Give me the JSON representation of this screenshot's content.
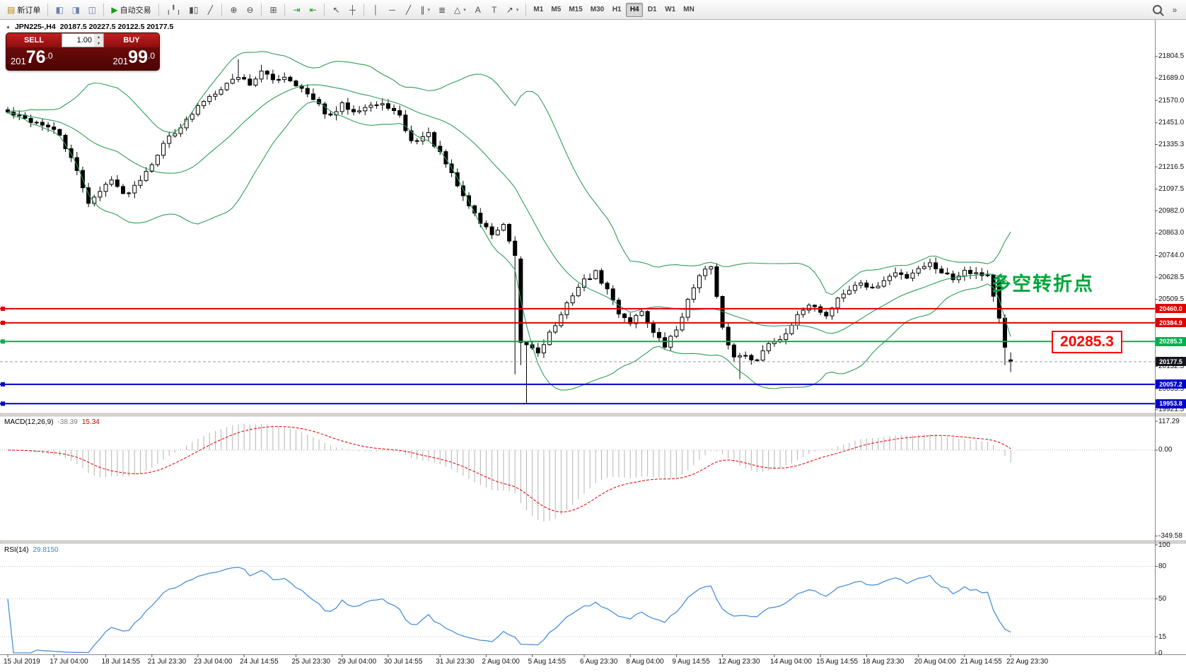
{
  "toolbar": {
    "caret_glyph": "▾",
    "groups": [
      {
        "buttons": [
          {
            "name": "new-order-button",
            "glyph": "▤",
            "glyph_color": "#b8860b",
            "label": "新订单"
          }
        ]
      },
      {
        "buttons": [
          {
            "name": "market-watch-icon",
            "glyph": "◧",
            "glyph_color": "#6b7fae"
          },
          {
            "name": "data-window-icon",
            "glyph": "◨",
            "glyph_color": "#6b7fae"
          },
          {
            "name": "navigator-icon",
            "glyph": "◫",
            "glyph_color": "#6b7fae"
          }
        ]
      },
      {
        "buttons": [
          {
            "name": "autotrading-button",
            "glyph": "▶",
            "glyph_color": "#18a018",
            "label": "自动交易"
          }
        ]
      },
      {
        "buttons": [
          {
            "name": "bar-chart-icon",
            "glyph": "╷╹╷"
          },
          {
            "name": "candlestick-chart-icon",
            "glyph": "▮▯"
          },
          {
            "name": "line-chart-icon",
            "glyph": "╱"
          }
        ]
      },
      {
        "buttons": [
          {
            "name": "zoom-in-icon",
            "glyph": "⊕"
          },
          {
            "name": "zoom-out-icon",
            "glyph": "⊖"
          }
        ]
      },
      {
        "buttons": [
          {
            "name": "tile-windows-icon",
            "glyph": "⊞"
          }
        ]
      },
      {
        "buttons": [
          {
            "name": "auto-scroll-icon",
            "glyph": "⇥",
            "glyph_color": "#18a018"
          },
          {
            "name": "chart-shift-icon",
            "glyph": "⇤",
            "glyph_color": "#18a018"
          }
        ]
      },
      {
        "buttons": [
          {
            "name": "cursor-icon",
            "glyph": "↖"
          },
          {
            "name": "crosshair-icon",
            "glyph": "┼"
          }
        ]
      },
      {
        "buttons": [
          {
            "name": "vertical-line-icon",
            "glyph": "│"
          },
          {
            "name": "horizontal-line-icon",
            "glyph": "─"
          },
          {
            "name": "trendline-icon",
            "glyph": "╱"
          },
          {
            "name": "channel-icon",
            "glyph": "∥",
            "caret": true
          },
          {
            "name": "fibonacci-icon",
            "glyph": "≣"
          },
          {
            "name": "shapes-icon",
            "glyph": "△",
            "caret": true
          },
          {
            "name": "text-icon",
            "glyph": "A"
          },
          {
            "name": "text-label-icon",
            "glyph": "T"
          },
          {
            "name": "arrows-icon",
            "glyph": "↗",
            "caret": true
          }
        ]
      }
    ],
    "timeframes": [
      "M1",
      "M5",
      "M15",
      "M30",
      "H1",
      "H4",
      "D1",
      "W1",
      "MN"
    ],
    "active_timeframe": "H4",
    "right_icons": [
      {
        "name": "search-icon",
        "magnifier": true
      },
      {
        "name": "more-tools-icon",
        "glyph": "»"
      }
    ]
  },
  "title": {
    "marker": "▲",
    "symbol": "JPN225-,H4",
    "ohlc_text": "20187.5 20227.5 20122.5 20177.5"
  },
  "one_click": {
    "sell_label": "SELL",
    "buy_label": "BUY",
    "volume": "1.00",
    "spin_up": "▲",
    "spin_down": "▼",
    "sell_price": {
      "pre": "201",
      "big": "76",
      "frac": ".0"
    },
    "buy_price": {
      "pre": "201",
      "big": "99",
      "frac": ".0"
    }
  },
  "annotation": {
    "text": "多空转折点",
    "color": "#00a63c"
  },
  "callout": {
    "text": "20285.3",
    "color": "#ff0000"
  },
  "chart_data": {
    "type": "candlestick",
    "symbol": "JPN225-",
    "period": "H4",
    "ohlc": {
      "open": 20187.5,
      "high": 20227.5,
      "low": 20122.5,
      "close": 20177.5
    },
    "price_range": {
      "top": 22000,
      "bottom": 19906
    },
    "n_candles": 175,
    "first_open": 21520,
    "noise": 14,
    "seed": 42,
    "waypoints": [
      [
        0,
        21505
      ],
      [
        3,
        21470
      ],
      [
        6,
        21445
      ],
      [
        9,
        21385
      ],
      [
        12,
        21190
      ],
      [
        14,
        21030
      ],
      [
        16,
        21080
      ],
      [
        18,
        21160
      ],
      [
        20,
        21065
      ],
      [
        22,
        21115
      ],
      [
        25,
        21240
      ],
      [
        28,
        21380
      ],
      [
        31,
        21460
      ],
      [
        34,
        21570
      ],
      [
        37,
        21640
      ],
      [
        40,
        21700
      ],
      [
        42,
        21660
      ],
      [
        44,
        21720
      ],
      [
        46,
        21680
      ],
      [
        48,
        21700
      ],
      [
        50,
        21660
      ],
      [
        53,
        21570
      ],
      [
        56,
        21480
      ],
      [
        58,
        21545
      ],
      [
        60,
        21520
      ],
      [
        63,
        21545
      ],
      [
        66,
        21540
      ],
      [
        68,
        21480
      ],
      [
        70,
        21350
      ],
      [
        73,
        21390
      ],
      [
        76,
        21230
      ],
      [
        79,
        21060
      ],
      [
        82,
        20920
      ],
      [
        84,
        20860
      ],
      [
        86,
        20900
      ],
      [
        88,
        20730
      ],
      [
        90,
        20270
      ],
      [
        92,
        20230
      ],
      [
        94,
        20330
      ],
      [
        96,
        20420
      ],
      [
        98,
        20540
      ],
      [
        100,
        20610
      ],
      [
        102,
        20650
      ],
      [
        104,
        20560
      ],
      [
        106,
        20440
      ],
      [
        108,
        20390
      ],
      [
        110,
        20450
      ],
      [
        112,
        20330
      ],
      [
        114,
        20260
      ],
      [
        116,
        20350
      ],
      [
        118,
        20500
      ],
      [
        120,
        20650
      ],
      [
        122,
        20680
      ],
      [
        124,
        20350
      ],
      [
        126,
        20200
      ],
      [
        128,
        20220
      ],
      [
        130,
        20180
      ],
      [
        132,
        20280
      ],
      [
        134,
        20300
      ],
      [
        136,
        20380
      ],
      [
        138,
        20450
      ],
      [
        140,
        20480
      ],
      [
        142,
        20420
      ],
      [
        144,
        20520
      ],
      [
        146,
        20560
      ],
      [
        148,
        20600
      ],
      [
        150,
        20560
      ],
      [
        152,
        20610
      ],
      [
        154,
        20650
      ],
      [
        156,
        20630
      ],
      [
        158,
        20680
      ],
      [
        160,
        20700
      ],
      [
        162,
        20660
      ],
      [
        164,
        20620
      ],
      [
        166,
        20670
      ],
      [
        168,
        20650
      ],
      [
        170,
        20640
      ],
      [
        172,
        20420
      ],
      [
        173,
        20250
      ],
      [
        174,
        20177.5
      ]
    ],
    "high_overrides": {
      "40": 21790,
      "44": 21760
    },
    "low_overrides": {
      "88": 20110,
      "90": 19955,
      "127": 20085
    },
    "force_candles": {
      "89": [
        20725,
        20740,
        20160,
        20280
      ],
      "172": [
        20610,
        20630,
        20380,
        20410
      ],
      "173": [
        20410,
        20430,
        20160,
        20255
      ],
      "174": [
        20187.5,
        20227.5,
        20122.5,
        20177.5
      ]
    },
    "bollinger": {
      "period": 20,
      "deviation": 2
    },
    "colors": {
      "bull": "#ffffff",
      "bear": "#000000",
      "bb": "#2f9e5a",
      "macd_hist": "#b4b4b4",
      "macd_signal": "#e00000",
      "rsi_line": "#4a90d9"
    },
    "horizontal_lines": [
      {
        "price": 20460.0,
        "label": "20460.0",
        "color": "#e00000"
      },
      {
        "price": 20384.9,
        "label": "20384.9",
        "color": "#e00000"
      },
      {
        "price": 20285.3,
        "label": "20285.3",
        "color": "#00b050"
      },
      {
        "price": 20057.2,
        "label": "20057.2",
        "color": "#0000cc"
      },
      {
        "price": 19953.8,
        "label": "19953.8",
        "color": "#0000cc"
      }
    ],
    "current_price": {
      "price": 20177.5,
      "label": "20177.5",
      "badge_color": "#15151d"
    },
    "y_ticks": [
      "21804.5",
      "21689.0",
      "21570.0",
      "21451.0",
      "21335.3",
      "21216.5",
      "21097.5",
      "20982.0",
      "20863.0",
      "20744.0",
      "20628.5",
      "20509.5",
      "20390.5",
      "20271.5",
      "20152.5",
      "20033.5",
      "19921.5"
    ],
    "x_ticks": [
      {
        "label": "15 Jul 2019",
        "i": 0
      },
      {
        "label": "17 Jul 04:00",
        "i": 8
      },
      {
        "label": "18 Jul 14:55",
        "i": 17
      },
      {
        "label": "21 Jul 23:30",
        "i": 25
      },
      {
        "label": "23 Jul 04:00",
        "i": 33
      },
      {
        "label": "24 Jul 14:55",
        "i": 41
      },
      {
        "label": "25 Jul 23:30",
        "i": 50
      },
      {
        "label": "29 Jul 04:00",
        "i": 58
      },
      {
        "label": "30 Jul 14:55",
        "i": 66
      },
      {
        "label": "31 Jul 23:30",
        "i": 75
      },
      {
        "label": "2 Aug 04:00",
        "i": 83
      },
      {
        "label": "5 Aug 14:55",
        "i": 91
      },
      {
        "label": "6 Aug 23:30",
        "i": 100
      },
      {
        "label": "8 Aug 04:00",
        "i": 108
      },
      {
        "label": "9 Aug 14:55",
        "i": 116
      },
      {
        "label": "12 Aug 23:30",
        "i": 124
      },
      {
        "label": "14 Aug 04:00",
        "i": 133
      },
      {
        "label": "15 Aug 14:55",
        "i": 141
      },
      {
        "label": "18 Aug 23:30",
        "i": 149
      },
      {
        "label": "20 Aug 04:00",
        "i": 158
      },
      {
        "label": "21 Aug 14:55",
        "i": 166
      },
      {
        "label": "22 Aug 23:30",
        "i": 174
      }
    ],
    "macd": {
      "label": "MACD(12,26,9)",
      "value_main": "-38.39",
      "value_signal": "15.34",
      "range": {
        "top": 135,
        "bottom": -365
      },
      "ticks": [
        {
          "v": 117.29,
          "label": "117.29"
        },
        {
          "v": 0,
          "label": "0.00"
        },
        {
          "v": -349.58,
          "label": "-349.58"
        }
      ]
    },
    "rsi": {
      "label": "RSI(14)",
      "value": "29.8150",
      "ticks": [
        {
          "v": 100,
          "label": "100"
        },
        {
          "v": 80,
          "label": "80"
        },
        {
          "v": 50,
          "label": "50"
        },
        {
          "v": 15,
          "label": "15"
        },
        {
          "v": 0,
          "label": "0"
        }
      ],
      "levels": [
        80,
        50,
        15
      ]
    }
  }
}
